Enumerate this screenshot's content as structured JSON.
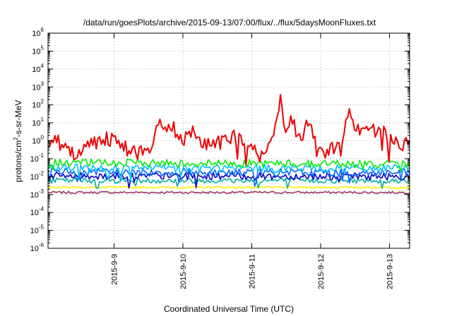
{
  "chart_data": {
    "type": "line",
    "title": "/data/run/goesPlots/archive/2015-09-13/07:00/flux/../flux/5daysMoonFluxes.txt",
    "xlabel": "Coordinated Universal Time (UTC)",
    "ylabel": "protons/cm²-s-sr-MeV",
    "ylabel_parts": [
      "protons/cm",
      "2",
      "-s-sr-MeV"
    ],
    "yscale": "log",
    "ylim": [
      1e-06,
      1000000.0
    ],
    "yticks": [
      {
        "value": 1e-06,
        "base": "10",
        "exp": "-6"
      },
      {
        "value": 1e-05,
        "base": "10",
        "exp": "-5"
      },
      {
        "value": 0.0001,
        "base": "10",
        "exp": "-4"
      },
      {
        "value": 0.001,
        "base": "10",
        "exp": "-3"
      },
      {
        "value": 0.01,
        "base": "10",
        "exp": "-2"
      },
      {
        "value": 0.1,
        "base": "10",
        "exp": "-1"
      },
      {
        "value": 1,
        "base": "10",
        "exp": "0"
      },
      {
        "value": 10.0,
        "base": "10",
        "exp": "1"
      },
      {
        "value": 100.0,
        "base": "10",
        "exp": "2"
      },
      {
        "value": 1000.0,
        "base": "10",
        "exp": "3"
      },
      {
        "value": 10000.0,
        "base": "10",
        "exp": "4"
      },
      {
        "value": 100000.0,
        "base": "10",
        "exp": "5"
      },
      {
        "value": 1000000.0,
        "base": "10",
        "exp": "6"
      }
    ],
    "xlim": [
      "2015-09-08 01:00",
      "2015-09-13 07:00"
    ],
    "xticks": [
      "2015-9-9",
      "2015-9-10",
      "2015-9-11",
      "2015-9-12",
      "2015-9-13"
    ],
    "xtick_values": [
      "2015-09-09",
      "2015-09-10",
      "2015-09-11",
      "2015-09-12",
      "2015-09-13"
    ],
    "grid": true,
    "series": [
      {
        "color": "#ee0000",
        "base": [
          [
            "2015-09-08 01:00",
            0.8
          ],
          [
            "2015-09-08 03:00",
            2.0
          ],
          [
            "2015-09-08 06:00",
            0.4
          ],
          [
            "2015-09-08 09:00",
            0.2
          ],
          [
            "2015-09-08 12:00",
            0.3
          ],
          [
            "2015-09-08 15:00",
            0.5
          ],
          [
            "2015-09-08 18:00",
            1.0
          ],
          [
            "2015-09-08 21:00",
            1.5
          ],
          [
            "2015-09-09 00:00",
            1.2
          ],
          [
            "2015-09-09 03:00",
            0.5
          ],
          [
            "2015-09-09 06:00",
            0.3
          ],
          [
            "2015-09-09 09:00",
            0.2
          ],
          [
            "2015-09-09 12:00",
            0.3
          ],
          [
            "2015-09-09 15:00",
            3.0
          ],
          [
            "2015-09-09 16:00",
            20
          ],
          [
            "2015-09-09 18:00",
            3.0
          ],
          [
            "2015-09-09 21:00",
            5.0
          ],
          [
            "2015-09-10 00:00",
            0.8
          ],
          [
            "2015-09-10 03:00",
            3.0
          ],
          [
            "2015-09-10 06:00",
            1.2
          ],
          [
            "2015-09-10 09:00",
            0.7
          ],
          [
            "2015-09-10 12:00",
            0.6
          ],
          [
            "2015-09-10 15:00",
            1.0
          ],
          [
            "2015-09-10 18:00",
            2.0
          ],
          [
            "2015-09-10 21:00",
            1.5
          ],
          [
            "2015-09-11 00:00",
            0.3
          ],
          [
            "2015-09-11 03:00",
            0.15
          ],
          [
            "2015-09-11 06:00",
            0.3
          ],
          [
            "2015-09-11 09:00",
            20
          ],
          [
            "2015-09-11 10:00",
            150
          ],
          [
            "2015-09-11 12:00",
            3.0
          ],
          [
            "2015-09-11 14:00",
            30
          ],
          [
            "2015-09-11 16:00",
            1.0
          ],
          [
            "2015-09-11 19:00",
            5.0
          ],
          [
            "2015-09-11 22:00",
            2.0
          ],
          [
            "2015-09-12 00:00",
            0.4
          ],
          [
            "2015-09-12 02:00",
            0.15
          ],
          [
            "2015-09-12 05:00",
            0.4
          ],
          [
            "2015-09-12 07:00",
            0.3
          ],
          [
            "2015-09-12 09:00",
            40
          ],
          [
            "2015-09-12 10:00",
            80
          ],
          [
            "2015-09-12 12:00",
            5.0
          ],
          [
            "2015-09-12 15:00",
            3.0
          ],
          [
            "2015-09-12 18:00",
            5.0
          ],
          [
            "2015-09-12 21:00",
            3.0
          ],
          [
            "2015-09-13 00:00",
            2.0
          ],
          [
            "2015-09-13 03:00",
            1.0
          ],
          [
            "2015-09-13 07:00",
            0.5
          ]
        ],
        "noise": 0.45
      },
      {
        "color": "#00ee00",
        "base": [
          [
            "2015-09-08 01:00",
            0.06
          ],
          [
            "2015-09-13 07:00",
            0.05
          ]
        ],
        "noise": 0.22
      },
      {
        "color": "#00c0ff",
        "base": [
          [
            "2015-09-08 01:00",
            0.03
          ],
          [
            "2015-09-13 07:00",
            0.028
          ]
        ],
        "noise": 0.22
      },
      {
        "color": "#0066ff",
        "base": [
          [
            "2015-09-08 01:00",
            0.018
          ],
          [
            "2015-09-13 07:00",
            0.016
          ]
        ],
        "noise": 0.22
      },
      {
        "color": "#0000cc",
        "base": [
          [
            "2015-09-08 01:00",
            0.011
          ],
          [
            "2015-09-13 07:00",
            0.01
          ]
        ],
        "noise": 0.2
      },
      {
        "color": "#00b0a0",
        "base": [
          [
            "2015-09-08 01:00",
            0.006
          ],
          [
            "2015-09-13 07:00",
            0.006
          ]
        ],
        "noise": 0.15
      },
      {
        "color": "#ffee00",
        "base": [
          [
            "2015-09-08 01:00",
            0.0025
          ],
          [
            "2015-09-13 07:00",
            0.0025
          ]
        ],
        "noise": 0.05
      },
      {
        "color": "#993366",
        "base": [
          [
            "2015-09-08 01:00",
            0.0013
          ],
          [
            "2015-09-13 07:00",
            0.0013
          ]
        ],
        "noise": 0.06
      }
    ]
  }
}
